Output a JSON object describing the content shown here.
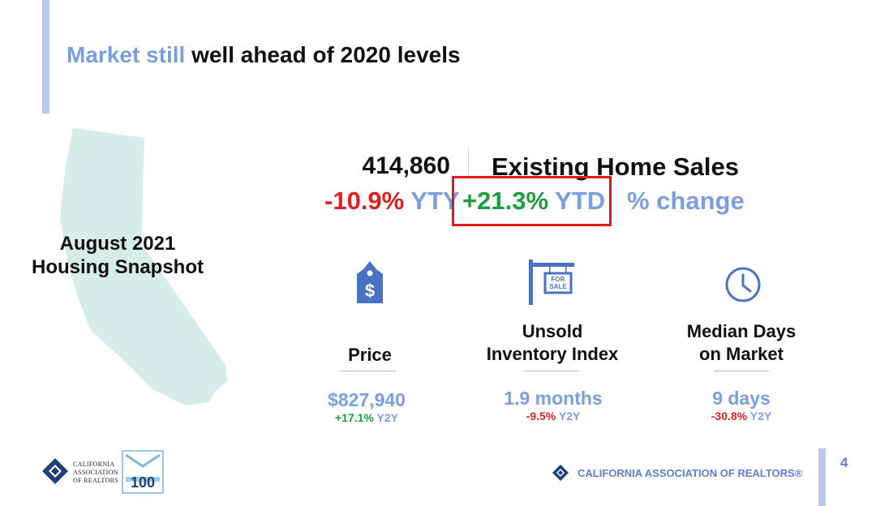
{
  "slide": {
    "title_highlight": "Market still",
    "title_rest": "well ahead of 2020 levels",
    "snapshot_line1": "August 2021",
    "snapshot_line2": "Housing Snapshot",
    "page_number": "4"
  },
  "sales": {
    "count": "414,860",
    "label": "Existing Home Sales",
    "yty_value": "-10.9%",
    "yty_unit": "YTY",
    "ytd_value": "+21.3%",
    "ytd_unit": "YTD",
    "change_label": "% change"
  },
  "metrics": [
    {
      "label_line1": "Price",
      "label_line2": "",
      "value": "$827,940",
      "change": "+17.1%",
      "change_unit": "Y2Y",
      "icon": "price-tag-icon"
    },
    {
      "label_line1": "Unsold",
      "label_line2": "Inventory Index",
      "value": "1.9 months",
      "change": "-9.5%",
      "change_unit": "Y2Y",
      "icon": "for-sale-sign-icon"
    },
    {
      "label_line1": "Median Days",
      "label_line2": "on Market",
      "value": "9 days",
      "change": "-30.8%",
      "change_unit": "Y2Y",
      "icon": "clock-icon"
    }
  ],
  "footer": {
    "car_line1": "CALIFORNIA",
    "car_line2": "ASSOCIATION",
    "car_line3": "OF REALTORS",
    "badge_number": "100",
    "org_name": "CALIFORNIA ASSOCIATION OF REALTORS®",
    "sign_text_1": "FOR",
    "sign_text_2": "SALE"
  },
  "colors": {
    "accent_blue": "#7a9ee0",
    "positive_green": "#1c9e3c",
    "negative_red": "#e02020",
    "highlight_box": "#e4161b",
    "map_fill": "#d5ece9"
  }
}
